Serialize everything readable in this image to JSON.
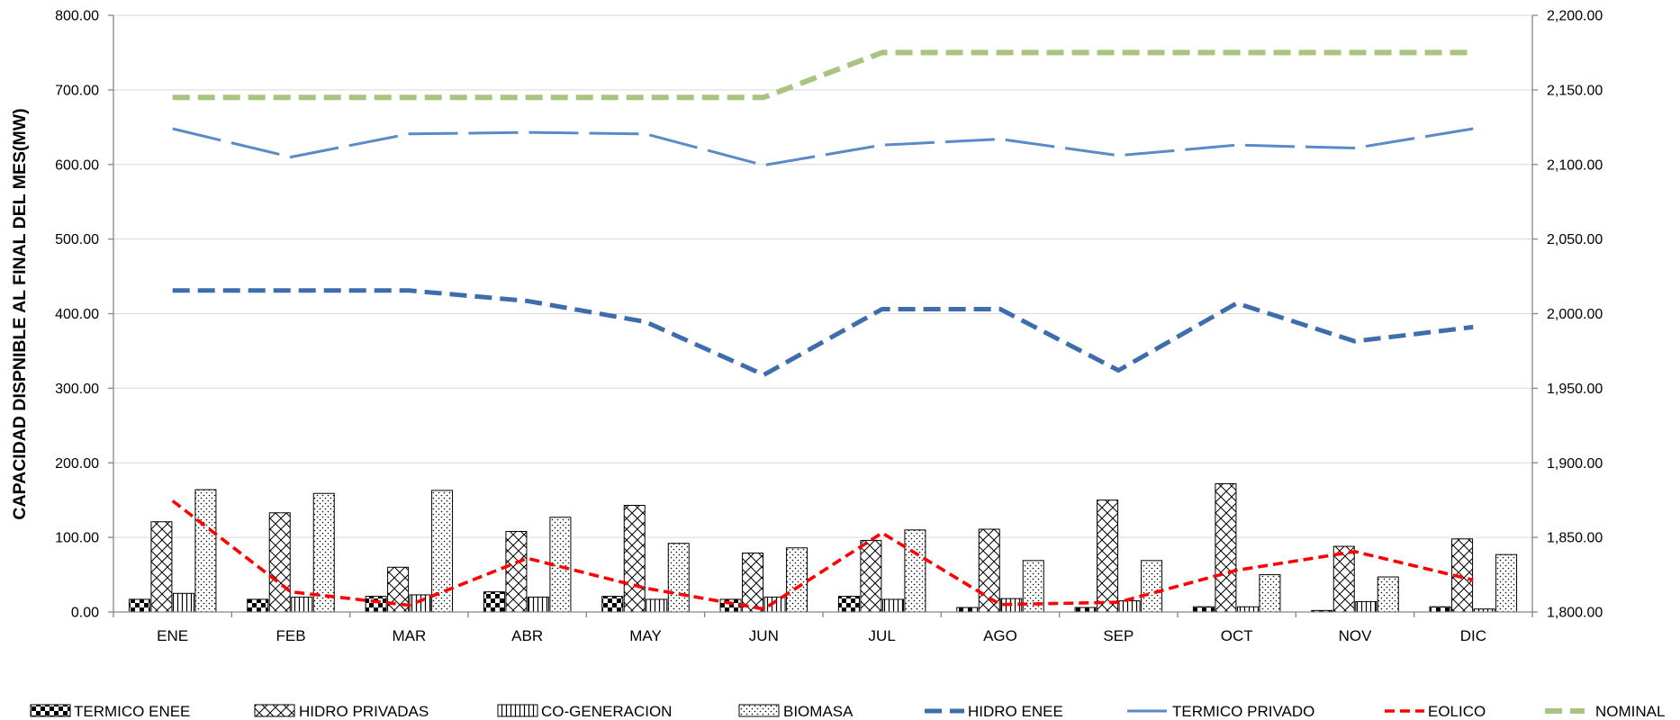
{
  "chart_data": {
    "type": "bar",
    "categories": [
      "ENE",
      "FEB",
      "MAR",
      "ABR",
      "MAY",
      "JUN",
      "JUL",
      "AGO",
      "SEP",
      "OCT",
      "NOV",
      "DIC"
    ],
    "ylabel": "CAPACIDAD DISPNIBLE AL FINAL DEL MES(MW)",
    "ylim": [
      0,
      800
    ],
    "y2lim": [
      1800,
      2200
    ],
    "y_tick_labels": [
      "0.00",
      "100.00",
      "200.00",
      "300.00",
      "400.00",
      "500.00",
      "600.00",
      "700.00",
      "800.00"
    ],
    "y2_tick_labels": [
      "1,800.00",
      "1,850.00",
      "1,900.00",
      "1,950.00",
      "2,000.00",
      "2,050.00",
      "2,100.00",
      "2,150.00",
      "2,200.00"
    ],
    "grid": true,
    "legend_position": "bottom",
    "series": [
      {
        "name": "TERMICO ENEE",
        "type": "bar",
        "axis": "left",
        "pattern": "checker",
        "values": [
          17,
          17,
          21,
          27,
          21,
          17,
          21,
          6,
          6,
          7,
          2,
          7
        ]
      },
      {
        "name": "HIDRO PRIVADAS",
        "type": "bar",
        "axis": "left",
        "pattern": "crosshatch",
        "values": [
          121,
          133,
          60,
          108,
          143,
          79,
          96,
          111,
          150,
          172,
          88,
          98
        ]
      },
      {
        "name": "CO-GENERACION",
        "type": "bar",
        "axis": "left",
        "pattern": "vertical-lines",
        "values": [
          25,
          20,
          23,
          20,
          17,
          20,
          17,
          18,
          15,
          7,
          14,
          4
        ]
      },
      {
        "name": "BIOMASA",
        "type": "bar",
        "axis": "left",
        "pattern": "dots",
        "values": [
          164,
          159,
          163,
          127,
          92,
          86,
          110,
          69,
          69,
          50,
          47,
          77
        ]
      },
      {
        "name": "HIDRO ENEE",
        "type": "line",
        "axis": "left",
        "color": "#3E6DAE",
        "style": "dash",
        "values": [
          431,
          431,
          431,
          417,
          389,
          318,
          406,
          406,
          324,
          414,
          363,
          382
        ]
      },
      {
        "name": "TERMICO PRIVADO",
        "type": "line",
        "axis": "left",
        "color": "#5A8AC8",
        "style": "long-dash",
        "values": [
          648,
          610,
          641,
          643,
          641,
          599,
          626,
          634,
          612,
          626,
          622,
          648
        ]
      },
      {
        "name": "EOLICO",
        "type": "line",
        "axis": "left",
        "color": "#FF0000",
        "style": "short-dash",
        "values": [
          149,
          27,
          9,
          72,
          32,
          4,
          106,
          10,
          13,
          56,
          81,
          43
        ]
      },
      {
        "name": "NOMINAL",
        "type": "line",
        "axis": "right",
        "color": "#A9C47F",
        "style": "heavy-dash",
        "values": [
          2145,
          2145,
          2145,
          2145,
          2145,
          2145,
          2175,
          2175,
          2175,
          2175,
          2175,
          2175
        ]
      }
    ]
  }
}
